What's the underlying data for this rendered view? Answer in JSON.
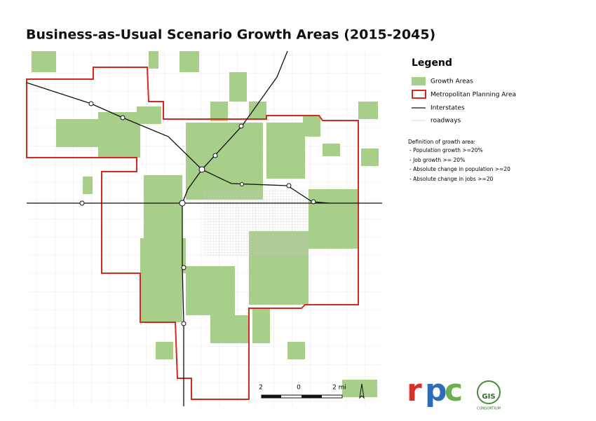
{
  "title": "Business-as-Usual Scenario Growth Areas (2015-2045)",
  "legend": {
    "title": "Legend",
    "items": [
      "Growth Areas",
      "Metropolitan Planning Area",
      "Interstates",
      "roadways"
    ]
  },
  "definition": {
    "heading": "Definition of growth area:",
    "items": [
      "- Population growth >=20%",
      "- Job growth >= 20%",
      "- Absolute change in population >=20",
      "- Absolute change in jobs >=20"
    ]
  },
  "scale": {
    "labels": [
      "2",
      "0",
      "2 mi"
    ]
  },
  "logo": {
    "letters": [
      "r",
      "p",
      "c"
    ],
    "gis": "GIS",
    "consortium": "CONSORTIUM"
  }
}
